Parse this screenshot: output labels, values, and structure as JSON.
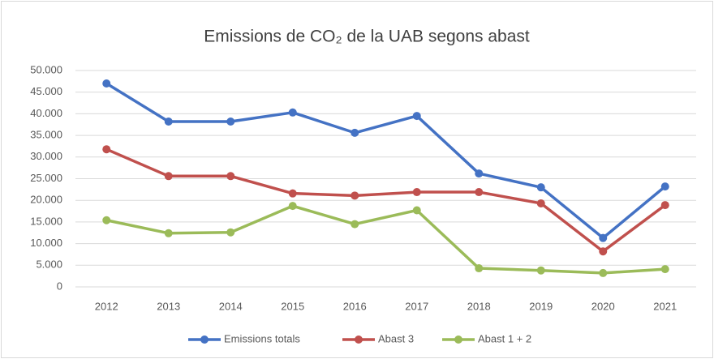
{
  "chart_data": {
    "type": "line",
    "title": "Emissions de CO₂ de la UAB segons abast",
    "categories": [
      "2012",
      "2013",
      "2014",
      "2015",
      "2016",
      "2017",
      "2018",
      "2019",
      "2020",
      "2021"
    ],
    "series": [
      {
        "name": "Emissions totals",
        "color": "#4472c4",
        "values": [
          47000,
          38200,
          38200,
          40300,
          35600,
          39500,
          26200,
          23000,
          11300,
          23200
        ]
      },
      {
        "name": "Abast 3",
        "color": "#c0504d",
        "values": [
          31800,
          25600,
          25600,
          21600,
          21100,
          21900,
          21900,
          19300,
          8200,
          18900
        ]
      },
      {
        "name": "Abast 1 + 2",
        "color": "#9bbb59",
        "values": [
          15400,
          12400,
          12600,
          18700,
          14500,
          17700,
          4300,
          3800,
          3200,
          4100
        ]
      }
    ],
    "ylim": [
      0,
      50000
    ],
    "yticks": [
      0,
      {
        "value": 5000,
        "label": "5.000"
      },
      {
        "value": 10000,
        "label": "10.000"
      },
      {
        "value": 15000,
        "label": "15.000"
      },
      {
        "value": 20000,
        "label": "20.000"
      },
      {
        "value": 25000,
        "label": "25.000"
      },
      {
        "value": 30000,
        "label": "30.000"
      },
      {
        "value": 35000,
        "label": "35.000"
      },
      {
        "value": 40000,
        "label": "40.000"
      },
      {
        "value": 45000,
        "label": "45.000"
      },
      {
        "value": 50000,
        "label": "50.000"
      }
    ],
    "grid": true,
    "legend": "bottom"
  }
}
